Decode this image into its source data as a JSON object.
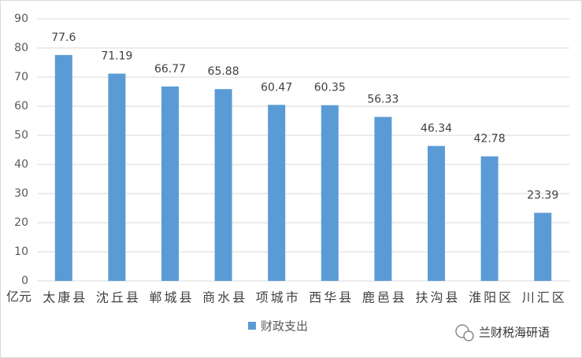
{
  "chart_data": {
    "type": "bar",
    "y_axis_label": "亿元",
    "categories": [
      "太康县",
      "沈丘县",
      "郸城县",
      "商水县",
      "项城市",
      "西华县",
      "鹿邑县",
      "扶沟县",
      "淮阳区",
      "川汇区"
    ],
    "series": [
      {
        "name": "财政支出",
        "color": "#5b9bd5",
        "values": [
          77.6,
          71.19,
          66.77,
          65.88,
          60.47,
          60.35,
          56.33,
          46.34,
          42.78,
          23.39
        ]
      }
    ],
    "ylim": [
      0,
      90
    ],
    "yticks": [
      0,
      10,
      20,
      30,
      40,
      50,
      60,
      70,
      80,
      90
    ],
    "grid": true,
    "legend": "bottom"
  },
  "watermark": "兰财税海研语"
}
